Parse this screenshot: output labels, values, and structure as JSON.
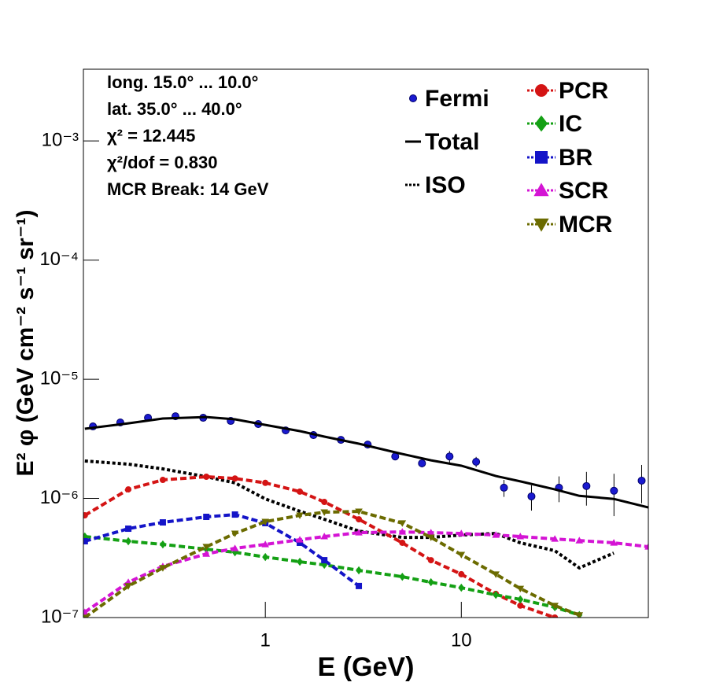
{
  "chart_data": {
    "type": "line",
    "x_label": "E (GeV)",
    "y_label": "E² φ (GeV cm⁻² s⁻¹ sr⁻¹)",
    "annotations": [
      "long. 15.0° ... 10.0°",
      "lat. 35.0° ... 40.0°",
      "χ² = 12.445",
      "χ²/dof = 0.830",
      "MCR Break: 14 GeV"
    ],
    "xlog": true,
    "ylog": true,
    "xlim": [
      0.118,
      90
    ],
    "ylim": [
      1e-07,
      0.004
    ],
    "xticks": [
      1,
      10
    ],
    "yticks": [
      {
        "value": 1e-07,
        "label": "10⁻⁷"
      },
      {
        "value": 1e-06,
        "label": "10⁻⁶"
      },
      {
        "value": 1e-05,
        "label": "10⁻⁵"
      },
      {
        "value": 0.0001,
        "label": "10⁻⁴"
      },
      {
        "value": 0.001,
        "label": "10⁻³"
      }
    ],
    "series": [
      {
        "name": "Fermi",
        "color": "#1a1ad0",
        "marker": "circle",
        "line": "none",
        "x": [
          0.132,
          0.182,
          0.252,
          0.348,
          0.482,
          0.666,
          0.92,
          1.27,
          1.76,
          2.43,
          3.33,
          4.6,
          6.3,
          8.71,
          11.9,
          16.5,
          22.8,
          31.5,
          43.5,
          60.1,
          83.2
        ],
        "values": [
          4.02e-06,
          4.34e-06,
          4.75e-06,
          4.89e-06,
          4.75e-06,
          4.47e-06,
          4.21e-06,
          3.72e-06,
          3.4e-06,
          3.1e-06,
          2.83e-06,
          2.25e-06,
          1.97e-06,
          2.25e-06,
          2.03e-06,
          1.23e-06,
          1.04e-06,
          1.23e-06,
          1.27e-06,
          1.16e-06,
          1.41e-06
        ],
        "errors": [
          1e-07,
          1e-07,
          1e-07,
          1e-07,
          1e-07,
          1e-07,
          1e-07,
          1e-07,
          1e-07,
          1e-07,
          1e-07,
          1.5e-07,
          1.5e-07,
          2.5e-07,
          2e-07,
          2e-07,
          2.5e-07,
          3e-07,
          4e-07,
          4.5e-07,
          5e-07
        ]
      },
      {
        "name": "Total",
        "color": "#000000",
        "marker": "none",
        "line": "solid",
        "x": [
          0.12,
          0.2,
          0.3,
          0.5,
          0.7,
          1,
          1.5,
          2,
          3,
          5,
          7,
          10,
          15,
          20,
          30,
          40,
          60,
          90
        ],
        "values": [
          3.84e-06,
          4.27e-06,
          4.68e-06,
          4.82e-06,
          4.61e-06,
          4.14e-06,
          3.67e-06,
          3.3e-06,
          2.88e-06,
          2.36e-06,
          2.09e-06,
          1.88e-06,
          1.54e-06,
          1.39e-06,
          1.19e-06,
          1.05e-06,
          9.9e-07,
          8.4e-07
        ]
      },
      {
        "name": "ISO",
        "color": "#000000",
        "marker": "none",
        "line": "dotted",
        "x": [
          0.12,
          0.2,
          0.3,
          0.5,
          0.7,
          1,
          1.5,
          2,
          3,
          5,
          7,
          10,
          15,
          20,
          30,
          40,
          60,
          90
        ],
        "values": [
          2.06e-06,
          1.94e-06,
          1.77e-06,
          1.52e-06,
          1.35e-06,
          9.9e-07,
          7.8e-07,
          6.68e-07,
          5.32e-07,
          4.71e-07,
          4.71e-07,
          4.93e-07,
          5.08e-07,
          4.24e-07,
          3.64e-07,
          2.61e-07,
          3.48e-07,
          null
        ]
      },
      {
        "name": "PCR",
        "color": "#d41414",
        "marker": "circle",
        "line": "dashed",
        "x": [
          0.12,
          0.2,
          0.3,
          0.5,
          0.7,
          1,
          1.5,
          2,
          3,
          5,
          7,
          10,
          15,
          20,
          30,
          40,
          60,
          90
        ],
        "values": [
          7.21e-07,
          1.19e-06,
          1.43e-06,
          1.52e-06,
          1.47e-06,
          1.35e-06,
          1.14e-06,
          9.34e-07,
          6.68e-07,
          4.24e-07,
          3.03e-07,
          2.31e-07,
          1.58e-07,
          1.26e-07,
          1e-07,
          null,
          null,
          null
        ]
      },
      {
        "name": "IC",
        "color": "#14a014",
        "marker": "diamond",
        "line": "dashed",
        "x": [
          0.12,
          0.2,
          0.3,
          0.5,
          0.7,
          1,
          1.5,
          2,
          3,
          5,
          7,
          10,
          15,
          20,
          30,
          40,
          60,
          90
        ],
        "values": [
          4.79e-07,
          4.37e-07,
          4.11e-07,
          3.75e-07,
          3.53e-07,
          3.22e-07,
          2.94e-07,
          2.77e-07,
          2.49e-07,
          2.2e-07,
          1.98e-07,
          1.78e-07,
          1.55e-07,
          1.42e-07,
          1.22e-07,
          1.05e-07,
          null,
          null
        ]
      },
      {
        "name": "BR",
        "color": "#1414c8",
        "marker": "square",
        "line": "dashed",
        "x": [
          0.12,
          0.2,
          0.3,
          0.5,
          0.7,
          1,
          1.5,
          2,
          3,
          5,
          7,
          10,
          15,
          20,
          30,
          40,
          60,
          90
        ],
        "values": [
          4.37e-07,
          5.57e-07,
          6.29e-07,
          7e-07,
          7.32e-07,
          6.2e-07,
          4.24e-07,
          3.03e-07,
          1.84e-07,
          null,
          null,
          null,
          null,
          null,
          null,
          null,
          null,
          null
        ]
      },
      {
        "name": "SCR",
        "color": "#d414d4",
        "marker": "triangle-up",
        "line": "dashed",
        "x": [
          0.12,
          0.2,
          0.3,
          0.5,
          0.7,
          1,
          1.5,
          2,
          3,
          5,
          7,
          10,
          15,
          20,
          30,
          40,
          60,
          90
        ],
        "values": [
          1.11e-07,
          1.98e-07,
          2.69e-07,
          3.42e-07,
          3.81e-07,
          4.11e-07,
          4.5e-07,
          4.79e-07,
          5.16e-07,
          5.24e-07,
          5.16e-07,
          5.08e-07,
          4.93e-07,
          4.79e-07,
          4.57e-07,
          4.43e-07,
          4.24e-07,
          3.93e-07
        ]
      },
      {
        "name": "MCR",
        "color": "#6b6b00",
        "marker": "triangle-down",
        "line": "dashed",
        "x": [
          0.12,
          0.2,
          0.3,
          0.5,
          0.7,
          1,
          1.5,
          2,
          3,
          5,
          7,
          10,
          15,
          20,
          30,
          40,
          60,
          90
        ],
        "values": [
          1e-07,
          1.84e-07,
          2.61e-07,
          3.93e-07,
          5.08e-07,
          6.38e-07,
          7.21e-07,
          7.66e-07,
          7.78e-07,
          6.2e-07,
          4.71e-07,
          3.37e-07,
          2.31e-07,
          1.75e-07,
          1.26e-07,
          1.05e-07,
          null,
          null
        ]
      }
    ]
  }
}
